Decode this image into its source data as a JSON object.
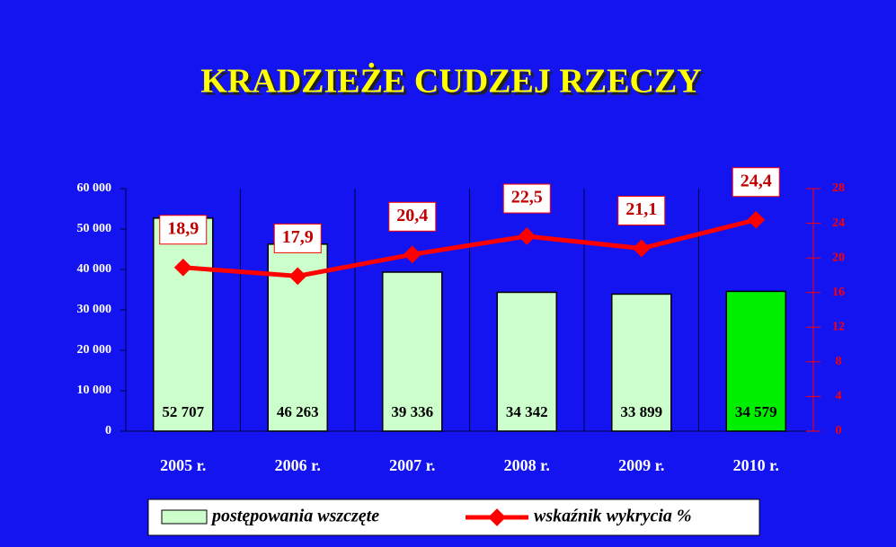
{
  "chart_data": {
    "type": "bar",
    "title": "KRADZIEŻE CUDZEJ RZECZY",
    "categories": [
      "2005 r.",
      "2006 r.",
      "2007 r.",
      "2008 r.",
      "2009 r.",
      "2010 r."
    ],
    "series": [
      {
        "name": "postępowania wszczęte",
        "type": "bar",
        "color": "#ccffcc",
        "colors": [
          "#ccffcc",
          "#ccffcc",
          "#ccffcc",
          "#ccffcc",
          "#ccffcc",
          "#00ee00"
        ],
        "values": [
          52707,
          46263,
          39336,
          34342,
          33899,
          34579
        ],
        "value_labels": [
          "52 707",
          "46 263",
          "39 336",
          "34 342",
          "33 899",
          "34 579"
        ]
      },
      {
        "name": "wskaźnik wykrycia %",
        "type": "line",
        "axis": "y2",
        "color": "#ff0000",
        "values": [
          18.9,
          17.9,
          20.4,
          22.5,
          21.1,
          24.4
        ],
        "value_labels": [
          "18,9",
          "17,9",
          "20,4",
          "22,5",
          "21,1",
          "24,4"
        ]
      }
    ],
    "ylim": [
      0,
      60000
    ],
    "yticks": [
      0,
      {
        "value": 10000,
        "label": "10 000"
      },
      {
        "value": 20000,
        "label": "20 000"
      },
      {
        "value": 30000,
        "label": "30 000"
      },
      {
        "value": 40000,
        "label": "40 000"
      },
      {
        "value": 50000,
        "label": "50 000"
      },
      {
        "value": 60000,
        "label": "60 000"
      }
    ],
    "y2lim": [
      0,
      28
    ],
    "y2ticks": [
      0,
      4,
      8,
      12,
      16,
      20,
      24,
      28
    ],
    "legend": "bottom"
  }
}
